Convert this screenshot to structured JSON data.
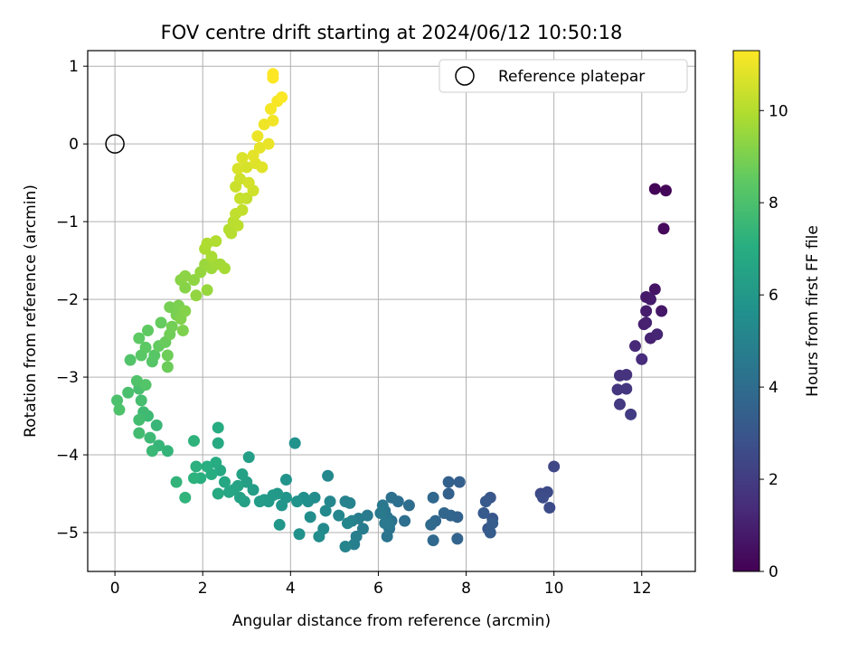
{
  "chart_data": {
    "type": "scatter",
    "title": "FOV centre drift starting at 2024/06/12 10:50:18",
    "xlabel": "Angular distance from reference (arcmin)",
    "ylabel": "Rotation from reference (arcmin)",
    "xlim": [
      -0.62,
      13.22
    ],
    "ylim": [
      -5.5,
      1.2
    ],
    "x_ticks": [
      "0",
      "2",
      "4",
      "6",
      "8",
      "10",
      "12"
    ],
    "y_ticks": [
      "−5",
      "−4",
      "−3",
      "−2",
      "−1",
      "0",
      "1"
    ],
    "grid": true,
    "colorbar": {
      "label": "Hours from first FF file",
      "min": 0,
      "max": 11.3,
      "ticks": [
        "0",
        "2",
        "4",
        "6",
        "8",
        "10"
      ],
      "colormap": "viridis"
    },
    "legend": {
      "placement": "top-right",
      "entries": [
        {
          "label": "Reference platepar",
          "marker": "open-circle"
        }
      ]
    },
    "reference_point": {
      "x": 0,
      "y": 0
    },
    "points": [
      [
        12.3,
        -0.58,
        0.1
      ],
      [
        12.55,
        -0.6,
        0.15
      ],
      [
        12.5,
        -1.09,
        0.3
      ],
      [
        12.3,
        -1.87,
        0.6
      ],
      [
        12.45,
        -2.15,
        0.7
      ],
      [
        12.1,
        -1.97,
        0.8
      ],
      [
        12.2,
        -2.0,
        0.85
      ],
      [
        12.1,
        -2.15,
        0.9
      ],
      [
        12.05,
        -2.32,
        1.0
      ],
      [
        12.1,
        -2.3,
        1.05
      ],
      [
        12.2,
        -2.5,
        1.1
      ],
      [
        12.35,
        -2.45,
        1.15
      ],
      [
        11.85,
        -2.6,
        1.3
      ],
      [
        12.0,
        -2.77,
        1.4
      ],
      [
        11.5,
        -2.98,
        1.6
      ],
      [
        11.65,
        -2.97,
        1.65
      ],
      [
        11.45,
        -3.16,
        1.75
      ],
      [
        11.65,
        -3.15,
        1.8
      ],
      [
        11.5,
        -3.35,
        1.9
      ],
      [
        11.75,
        -3.48,
        2.0
      ],
      [
        10.0,
        -4.15,
        2.4
      ],
      [
        9.7,
        -4.5,
        2.5
      ],
      [
        9.85,
        -4.48,
        2.55
      ],
      [
        9.9,
        -4.68,
        2.6
      ],
      [
        9.75,
        -4.55,
        2.65
      ],
      [
        8.6,
        -4.82,
        3.0
      ],
      [
        8.55,
        -4.55,
        3.05
      ],
      [
        8.5,
        -4.95,
        3.1
      ],
      [
        8.45,
        -4.6,
        3.15
      ],
      [
        8.4,
        -4.75,
        3.2
      ],
      [
        8.55,
        -5.0,
        3.25
      ],
      [
        8.6,
        -4.88,
        3.3
      ],
      [
        7.85,
        -4.35,
        3.4
      ],
      [
        7.6,
        -4.35,
        3.45
      ],
      [
        7.6,
        -4.5,
        3.5
      ],
      [
        7.8,
        -4.8,
        3.55
      ],
      [
        7.8,
        -5.08,
        3.6
      ],
      [
        7.65,
        -4.78,
        3.65
      ],
      [
        7.5,
        -4.75,
        3.7
      ],
      [
        7.3,
        -4.85,
        3.75
      ],
      [
        7.25,
        -4.55,
        3.8
      ],
      [
        7.25,
        -5.1,
        3.85
      ],
      [
        7.2,
        -4.9,
        3.9
      ],
      [
        6.7,
        -4.65,
        4.0
      ],
      [
        6.6,
        -4.85,
        4.05
      ],
      [
        6.45,
        -4.6,
        4.1
      ],
      [
        6.3,
        -4.55,
        4.15
      ],
      [
        6.3,
        -4.85,
        4.2
      ],
      [
        6.25,
        -4.95,
        4.25
      ],
      [
        6.2,
        -5.05,
        4.3
      ],
      [
        6.15,
        -4.72,
        4.35
      ],
      [
        6.2,
        -4.8,
        4.4
      ],
      [
        6.25,
        -4.9,
        4.45
      ],
      [
        6.1,
        -4.65,
        4.5
      ],
      [
        6.15,
        -4.88,
        4.55
      ],
      [
        6.05,
        -4.75,
        4.6
      ],
      [
        5.75,
        -4.78,
        4.65
      ],
      [
        5.65,
        -4.95,
        4.7
      ],
      [
        5.55,
        -4.82,
        4.75
      ],
      [
        5.5,
        -5.05,
        4.8
      ],
      [
        5.45,
        -5.15,
        4.85
      ],
      [
        5.4,
        -4.85,
        4.9
      ],
      [
        5.35,
        -4.62,
        4.95
      ],
      [
        5.25,
        -4.6,
        5.0
      ],
      [
        5.25,
        -5.18,
        5.05
      ],
      [
        5.3,
        -4.88,
        5.1
      ],
      [
        5.1,
        -4.78,
        5.15
      ],
      [
        4.9,
        -4.6,
        5.2
      ],
      [
        4.85,
        -4.27,
        5.25
      ],
      [
        4.8,
        -4.72,
        5.3
      ],
      [
        4.75,
        -4.95,
        5.35
      ],
      [
        4.65,
        -5.05,
        5.4
      ],
      [
        4.55,
        -4.55,
        5.45
      ],
      [
        4.45,
        -4.8,
        5.5
      ],
      [
        4.4,
        -4.6,
        5.55
      ],
      [
        4.3,
        -4.55,
        5.6
      ],
      [
        4.2,
        -5.02,
        5.65
      ],
      [
        4.1,
        -3.85,
        5.7
      ],
      [
        4.15,
        -4.6,
        5.75
      ],
      [
        3.9,
        -4.32,
        5.8
      ],
      [
        3.9,
        -4.55,
        5.85
      ],
      [
        3.8,
        -4.65,
        5.9
      ],
      [
        3.75,
        -4.9,
        5.95
      ],
      [
        3.7,
        -4.5,
        6.0
      ],
      [
        3.6,
        -4.52,
        6.05
      ],
      [
        3.5,
        -4.6,
        6.1
      ],
      [
        3.4,
        -4.58,
        6.15
      ],
      [
        3.3,
        -4.6,
        6.2
      ],
      [
        3.15,
        -4.45,
        6.25
      ],
      [
        3.05,
        -4.03,
        6.3
      ],
      [
        3.0,
        -4.35,
        6.35
      ],
      [
        2.95,
        -4.6,
        6.4
      ],
      [
        2.9,
        -4.25,
        6.45
      ],
      [
        2.85,
        -4.55,
        6.5
      ],
      [
        2.8,
        -4.4,
        6.55
      ],
      [
        2.7,
        -4.45,
        6.6
      ],
      [
        2.6,
        -4.48,
        6.65
      ],
      [
        2.5,
        -4.35,
        6.7
      ],
      [
        2.4,
        -4.2,
        6.75
      ],
      [
        2.35,
        -4.5,
        6.8
      ],
      [
        2.35,
        -3.85,
        6.85
      ],
      [
        2.35,
        -3.65,
        6.9
      ],
      [
        2.3,
        -4.1,
        6.95
      ],
      [
        2.2,
        -4.25,
        7.0
      ],
      [
        2.1,
        -4.15,
        7.05
      ],
      [
        1.95,
        -4.3,
        7.1
      ],
      [
        1.85,
        -4.15,
        7.15
      ],
      [
        1.8,
        -4.3,
        7.2
      ],
      [
        1.8,
        -3.82,
        7.25
      ],
      [
        1.6,
        -4.55,
        7.3
      ],
      [
        1.4,
        -4.35,
        7.35
      ],
      [
        1.2,
        -3.95,
        7.4
      ],
      [
        1.0,
        -3.88,
        7.45
      ],
      [
        0.95,
        -3.62,
        7.5
      ],
      [
        0.85,
        -3.95,
        7.55
      ],
      [
        0.8,
        -3.78,
        7.6
      ],
      [
        0.75,
        -3.5,
        7.65
      ],
      [
        0.65,
        -3.45,
        7.7
      ],
      [
        0.55,
        -3.72,
        7.75
      ],
      [
        0.55,
        -3.55,
        7.8
      ],
      [
        0.6,
        -3.3,
        7.85
      ],
      [
        0.55,
        -3.15,
        7.9
      ],
      [
        0.3,
        -3.2,
        7.95
      ],
      [
        0.05,
        -3.3,
        8.0
      ],
      [
        0.1,
        -3.42,
        8.05
      ],
      [
        0.5,
        -3.05,
        8.1
      ],
      [
        0.35,
        -2.78,
        8.15
      ],
      [
        0.7,
        -3.1,
        8.2
      ],
      [
        0.85,
        -2.8,
        8.25
      ],
      [
        0.9,
        -2.72,
        8.3
      ],
      [
        0.6,
        -2.72,
        8.35
      ],
      [
        0.7,
        -2.62,
        8.4
      ],
      [
        0.55,
        -2.5,
        8.45
      ],
      [
        0.75,
        -2.4,
        8.5
      ],
      [
        1.0,
        -2.6,
        8.55
      ],
      [
        1.05,
        -2.3,
        8.6
      ],
      [
        1.15,
        -2.55,
        8.65
      ],
      [
        1.2,
        -2.87,
        8.7
      ],
      [
        1.2,
        -2.72,
        8.75
      ],
      [
        1.25,
        -2.45,
        8.8
      ],
      [
        1.3,
        -2.35,
        8.85
      ],
      [
        1.25,
        -2.1,
        8.9
      ],
      [
        1.4,
        -2.2,
        8.95
      ],
      [
        1.45,
        -2.08,
        9.0
      ],
      [
        1.55,
        -2.4,
        9.05
      ],
      [
        1.5,
        -2.25,
        9.1
      ],
      [
        1.6,
        -2.15,
        9.15
      ],
      [
        1.6,
        -1.85,
        9.2
      ],
      [
        1.5,
        -1.75,
        9.25
      ],
      [
        1.6,
        -1.7,
        9.3
      ],
      [
        1.8,
        -1.75,
        9.35
      ],
      [
        1.85,
        -1.95,
        9.4
      ],
      [
        1.95,
        -1.65,
        9.45
      ],
      [
        2.1,
        -1.88,
        9.5
      ],
      [
        2.05,
        -1.55,
        9.55
      ],
      [
        2.2,
        -1.6,
        9.6
      ],
      [
        2.3,
        -1.55,
        9.65
      ],
      [
        2.4,
        -1.55,
        9.7
      ],
      [
        2.5,
        -1.6,
        9.75
      ],
      [
        2.2,
        -1.45,
        9.8
      ],
      [
        2.05,
        -1.35,
        9.85
      ],
      [
        2.1,
        -1.28,
        9.9
      ],
      [
        2.3,
        -1.25,
        9.95
      ],
      [
        2.6,
        -1.1,
        10.0
      ],
      [
        2.65,
        -1.15,
        10.05
      ],
      [
        2.7,
        -1.0,
        10.1
      ],
      [
        2.8,
        -1.05,
        10.15
      ],
      [
        2.75,
        -0.9,
        10.2
      ],
      [
        2.9,
        -0.85,
        10.25
      ],
      [
        3.0,
        -0.7,
        10.3
      ],
      [
        2.85,
        -0.7,
        10.35
      ],
      [
        2.75,
        -0.55,
        10.4
      ],
      [
        2.85,
        -0.45,
        10.45
      ],
      [
        3.15,
        -0.6,
        10.5
      ],
      [
        3.05,
        -0.5,
        10.55
      ],
      [
        3.0,
        -0.3,
        10.6
      ],
      [
        2.8,
        -0.32,
        10.65
      ],
      [
        2.9,
        -0.18,
        10.7
      ],
      [
        3.2,
        -0.25,
        10.75
      ],
      [
        3.35,
        -0.3,
        10.8
      ],
      [
        3.15,
        -0.15,
        10.85
      ],
      [
        3.3,
        -0.05,
        10.9
      ],
      [
        3.5,
        0.0,
        10.95
      ],
      [
        3.25,
        0.1,
        11.0
      ],
      [
        3.4,
        0.25,
        11.05
      ],
      [
        3.6,
        0.3,
        11.1
      ],
      [
        3.55,
        0.45,
        11.15
      ],
      [
        3.7,
        0.55,
        11.2
      ],
      [
        3.8,
        0.6,
        11.25
      ],
      [
        3.6,
        0.85,
        11.28
      ],
      [
        3.6,
        0.9,
        11.3
      ]
    ]
  }
}
